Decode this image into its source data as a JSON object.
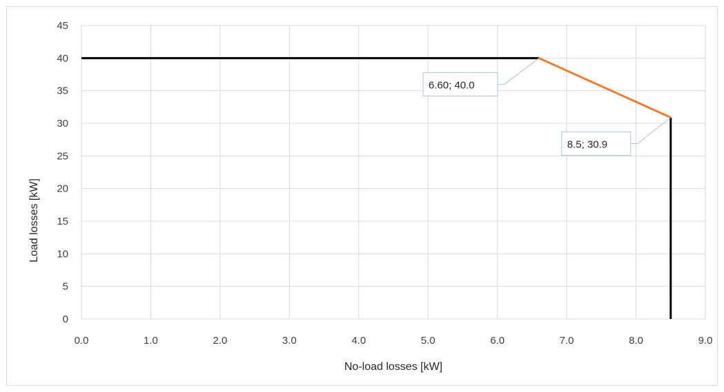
{
  "chart_data": {
    "type": "line",
    "title": "",
    "xlabel": "No-load losses [kW]",
    "ylabel": "Load losses [kW]",
    "xlim": [
      0,
      9
    ],
    "ylim": [
      0,
      45
    ],
    "x_ticks": [
      "0.0",
      "1.0",
      "2.0",
      "3.0",
      "4.0",
      "5.0",
      "6.0",
      "7.0",
      "8.0",
      "9.0"
    ],
    "y_ticks": [
      "0",
      "5",
      "10",
      "15",
      "20",
      "25",
      "30",
      "35",
      "40",
      "45"
    ],
    "grid": true,
    "legend": "none",
    "series": [
      {
        "color": "#000000",
        "x": [
          0.0,
          6.6
        ],
        "y": [
          40.0,
          40.0
        ]
      },
      {
        "color": "#ED7D31",
        "x": [
          6.6,
          8.5
        ],
        "y": [
          40.0,
          30.9
        ]
      },
      {
        "color": "#000000",
        "x": [
          8.5,
          8.5
        ],
        "y": [
          30.9,
          0.0
        ]
      }
    ],
    "annotations": [
      {
        "text": "6.60; 40.0",
        "x": 6.6,
        "y": 40.0
      },
      {
        "text": "8.5; 30.9",
        "x": 8.5,
        "y": 30.9
      }
    ],
    "colors": {
      "grid": "#D9D9D9",
      "frame": "#D9D9D9",
      "callout_border": "#A9C4E4"
    }
  }
}
